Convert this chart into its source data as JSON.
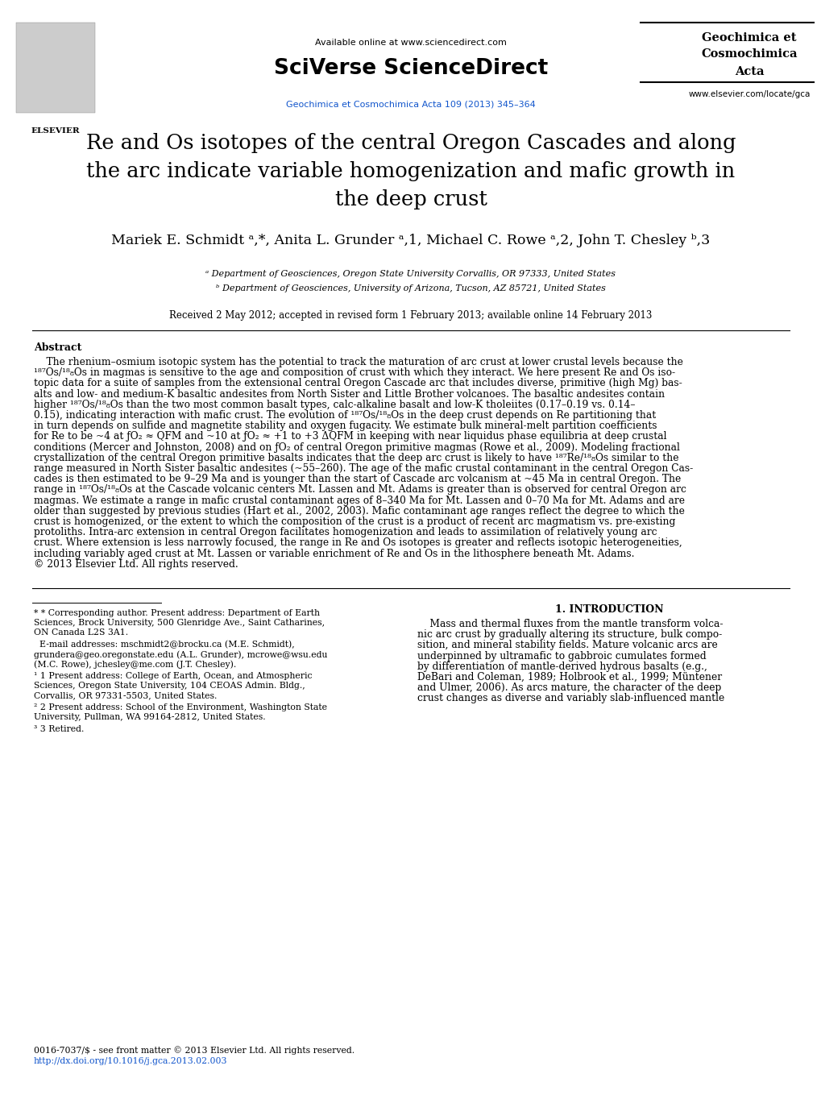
{
  "background_color": "#ffffff",
  "header_available": "Available online at www.sciencedirect.com",
  "header_sciverse": "SciVerse ScienceDirect",
  "header_journal_link": "Geochimica et Cosmochimica Acta 109 (2013) 345–364",
  "header_right1": "Geochimica et",
  "header_right2": "Cosmochimica",
  "header_right3": "Acta",
  "header_website": "www.elsevier.com/locate/gca",
  "title_line1": "Re and Os isotopes of the central Oregon Cascades and along",
  "title_line2": "the arc indicate variable homogenization and mafic growth in",
  "title_line3": "the deep crust",
  "author_line": "Mariek E. Schmidt ᵃ,*, Anita L. Grunder ᵃ,1, Michael C. Rowe ᵃ,2, John T. Chesley ᵇ,3",
  "affil_a": "ᵃ Department of Geosciences, Oregon State University Corvallis, OR 97333, United States",
  "affil_b": "ᵇ Department of Geosciences, University of Arizona, Tucson, AZ 85721, United States",
  "received": "Received 2 May 2012; accepted in revised form 1 February 2013; available online 14 February 2013",
  "abstract_title": "Abstract",
  "abstract_indent": "    The rhenium–osmium isotopic system has the potential to track the maturation of arc crust at lower crustal levels because the",
  "abstract_line2": "¹⁸⁷Os/¹⁸₈Os in magmas is sensitive to the age and composition of crust with which they interact. We here present Re and Os iso-",
  "abstract_line3": "topic data for a suite of samples from the extensional central Oregon Cascade arc that includes diverse, primitive (high Mg) bas-",
  "abstract_line4": "alts and low- and medium-K basaltic andesites from North Sister and Little Brother volcanoes. The basaltic andesites contain",
  "abstract_line5": "higher ¹⁸⁷Os/¹⁸₈Os than the two most common basalt types, calc-alkaline basalt and low-K tholeiites (0.17–0.19 vs. 0.14–",
  "abstract_line6": "0.15), indicating interaction with mafic crust. The evolution of ¹⁸⁷Os/¹⁸₈Os in the deep crust depends on Re partitioning that",
  "abstract_line7": "in turn depends on sulfide and magnetite stability and oxygen fugacity. We estimate bulk mineral-melt partition coefficients",
  "abstract_line8": "for Re to be ~4 at ƒO₂ ≈ QFM and ~10 at ƒO₂ ≈ +1 to +3 ΔQFM in keeping with near liquidus phase equilibria at deep crustal",
  "abstract_line9": "conditions (Mercer and Johnston, 2008) and on ƒO₂ of central Oregon primitive magmas (Rowe et al., 2009). Modeling fractional",
  "abstract_line10": "crystallization of the central Oregon primitive basalts indicates that the deep arc crust is likely to have ¹⁸⁷Re/¹⁸₈Os similar to the",
  "abstract_line11": "range measured in North Sister basaltic andesites (~55–260). The age of the mafic crustal contaminant in the central Oregon Cas-",
  "abstract_line12": "cades is then estimated to be 9–29 Ma and is younger than the start of Cascade arc volcanism at ~45 Ma in central Oregon. The",
  "abstract_line13": "range in ¹⁸⁷Os/¹⁸₈Os at the Cascade volcanic centers Mt. Lassen and Mt. Adams is greater than is observed for central Oregon arc",
  "abstract_line14": "magmas. We estimate a range in mafic crustal contaminant ages of 8–340 Ma for Mt. Lassen and 0–70 Ma for Mt. Adams and are",
  "abstract_line15": "older than suggested by previous studies (Hart et al., 2002, 2003). Mafic contaminant age ranges reflect the degree to which the",
  "abstract_line16": "crust is homogenized, or the extent to which the composition of the crust is a product of recent arc magmatism vs. pre-existing",
  "abstract_line17": "protoliths. Intra-arc extension in central Oregon facilitates homogenization and leads to assimilation of relatively young arc",
  "abstract_line18": "crust. Where extension is less narrowly focused, the range in Re and Os isotopes is greater and reflects isotopic heterogeneities,",
  "abstract_line19": "including variably aged crust at Mt. Lassen or variable enrichment of Re and Os in the lithosphere beneath Mt. Adams.",
  "abstract_line20": "© 2013 Elsevier Ltd. All rights reserved.",
  "fn_star": "* Corresponding author. Present address: Department of Earth",
  "fn_star2": "Sciences, Brock University, 500 Glenridge Ave., Saint Catharines,",
  "fn_star3": "ON Canada L2S 3A1.",
  "fn_email0": "  E-mail addresses: mschmidt2@brocku.ca (M.E. Schmidt),",
  "fn_email1": "grundera@geo.oregonstate.edu (A.L. Grunder), mcrowe@wsu.edu",
  "fn_email2": "(M.C. Rowe), jchesley@me.com (J.T. Chesley).",
  "fn_1a": "1 Present address: College of Earth, Ocean, and Atmospheric",
  "fn_1b": "Sciences, Oregon State University, 104 CEOAS Admin. Bldg.,",
  "fn_1c": "Corvallis, OR 97331-5503, United States.",
  "fn_2a": "2 Present address: School of the Environment, Washington State",
  "fn_2b": "University, Pullman, WA 99164-2812, United States.",
  "fn_3": "3 Retired.",
  "intro_title": "1. INTRODUCTION",
  "intro_p1": "    Mass and thermal fluxes from the mantle transform volca-",
  "intro_p2": "nic arc crust by gradually altering its structure, bulk compo-",
  "intro_p3": "sition, and mineral stability fields. Mature volcanic arcs are",
  "intro_p4": "underpinned by ultramafic to gabbroic cumulates formed",
  "intro_p5": "by differentiation of mantle-derived hydrous basalts (e.g.,",
  "intro_p6": "DeBari and Coleman, 1989; Holbrook et al., 1999; Müntener",
  "intro_p7": "and Ulmer, 2006). As arcs mature, the character of the deep",
  "intro_p8": "crust changes as diverse and variably slab-influenced mantle",
  "bottom1": "0016-7037/$ - see front matter © 2013 Elsevier Ltd. All rights reserved.",
  "bottom2": "http://dx.doi.org/10.1016/j.gca.2013.02.003",
  "link_color": "#1155cc",
  "text_color": "#000000"
}
